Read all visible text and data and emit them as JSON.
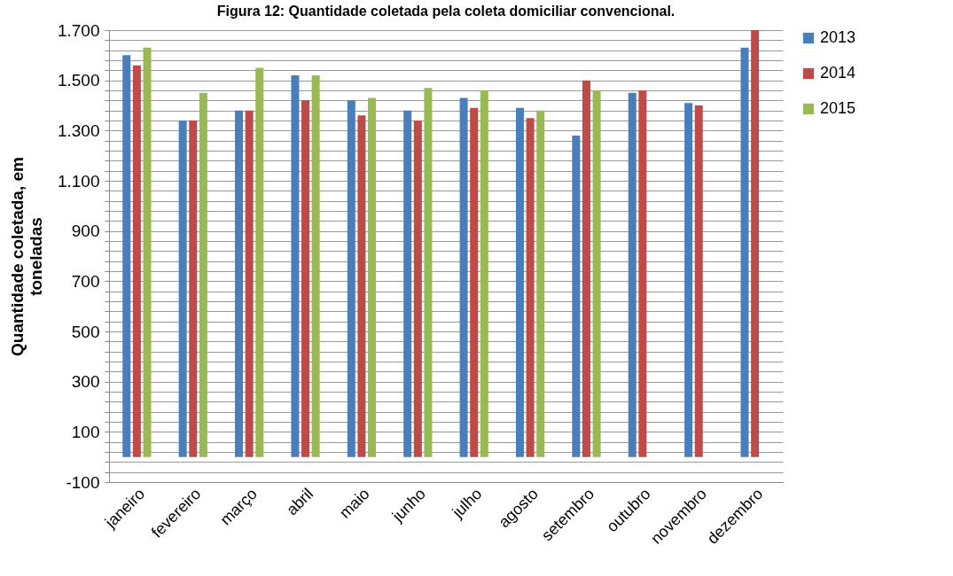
{
  "chart_data": {
    "type": "bar",
    "title": "Figura 12: Quantidade coletada pela coleta domiciliar convencional.",
    "ylabel": "Quantidade coletada, em toneladas",
    "categories": [
      "janeiro",
      "fevereiro",
      "março",
      "abril",
      "maio",
      "junho",
      "julho",
      "agosto",
      "setembro",
      "outubro",
      "novembro",
      "dezembro"
    ],
    "series": [
      {
        "name": "2013",
        "color": "#4a7ebb",
        "values": [
          1600,
          1340,
          1380,
          1520,
          1420,
          1380,
          1430,
          1390,
          1280,
          1450,
          1410,
          1630
        ]
      },
      {
        "name": "2014",
        "color": "#be4b48",
        "values": [
          1560,
          1340,
          1380,
          1420,
          1360,
          1340,
          1390,
          1350,
          1500,
          1460,
          1400,
          1700
        ]
      },
      {
        "name": "2015",
        "color": "#98b954",
        "values": [
          1630,
          1450,
          1550,
          1520,
          1430,
          1470,
          1460,
          1380,
          1460,
          null,
          null,
          null
        ]
      }
    ],
    "ylim": [
      -100,
      1700
    ],
    "yticks": [
      -100,
      {
        "value": -60,
        "label": null
      },
      {
        "value": -20,
        "label": null
      },
      {
        "value": 20,
        "label": null
      },
      {
        "value": 60,
        "label": null
      },
      100,
      {
        "value": 140,
        "label": null
      },
      {
        "value": 180,
        "label": null
      },
      {
        "value": 220,
        "label": null
      },
      {
        "value": 260,
        "label": null
      },
      300,
      {
        "value": 340,
        "label": null
      },
      {
        "value": 380,
        "label": null
      },
      {
        "value": 420,
        "label": null
      },
      {
        "value": 460,
        "label": null
      },
      500,
      {
        "value": 540,
        "label": null
      },
      {
        "value": 580,
        "label": null
      },
      {
        "value": 620,
        "label": null
      },
      {
        "value": 660,
        "label": null
      },
      700,
      {
        "value": 740,
        "label": null
      },
      {
        "value": 780,
        "label": null
      },
      {
        "value": 820,
        "label": null
      },
      {
        "value": 860,
        "label": null
      },
      900,
      {
        "value": 940,
        "label": null
      },
      {
        "value": 980,
        "label": null
      },
      {
        "value": 1020,
        "label": null
      },
      {
        "value": 1060,
        "label": null
      },
      {
        "value": 1100,
        "label": "1.100"
      },
      {
        "value": 1140,
        "label": null
      },
      {
        "value": 1180,
        "label": null
      },
      {
        "value": 1220,
        "label": null
      },
      {
        "value": 1260,
        "label": null
      },
      {
        "value": 1300,
        "label": "1.300"
      },
      {
        "value": 1340,
        "label": null
      },
      {
        "value": 1380,
        "label": null
      },
      {
        "value": 1420,
        "label": null
      },
      {
        "value": 1460,
        "label": null
      },
      {
        "value": 1500,
        "label": "1.500"
      },
      {
        "value": 1540,
        "label": null
      },
      {
        "value": 1580,
        "label": null
      },
      {
        "value": 1620,
        "label": null
      },
      {
        "value": 1660,
        "label": null
      },
      {
        "value": 1700,
        "label": "1.700"
      }
    ],
    "grid": "y",
    "legend": "right"
  }
}
